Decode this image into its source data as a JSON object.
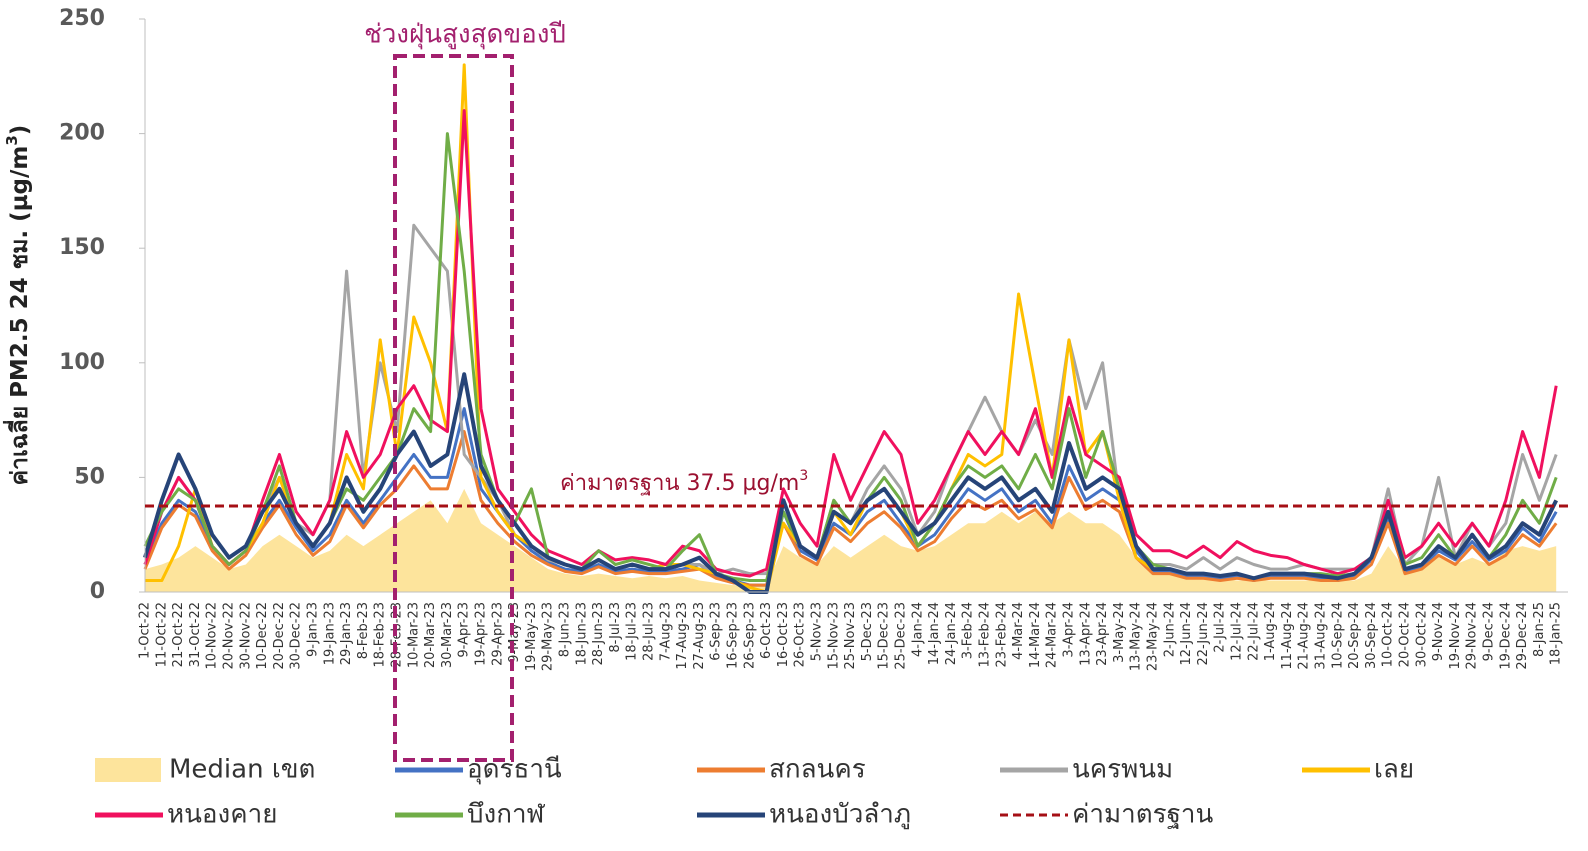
{
  "chart_data": {
    "type": "line",
    "y_label": [
      "ค่าเฉลี่ย PM2.5 24 ชม. (µg/m",
      "3",
      ")"
    ],
    "ylim": [
      0,
      250
    ],
    "yticks": [
      0,
      50,
      100,
      150,
      200,
      250
    ],
    "highlight_label": "ช่วงฝุ่นสูงสุดของปี",
    "categories": [
      "1-Oct-22",
      "11-Oct-22",
      "21-Oct-22",
      "31-Oct-22",
      "10-Nov-22",
      "20-Nov-22",
      "30-Nov-22",
      "10-Dec-22",
      "20-Dec-22",
      "30-Dec-22",
      "9-Jan-23",
      "19-Jan-23",
      "29-Jan-23",
      "8-Feb-23",
      "18-Feb-23",
      "28-Feb-23",
      "10-Mar-23",
      "20-Mar-23",
      "30-Mar-23",
      "9-Apr-23",
      "19-Apr-23",
      "29-Apr-23",
      "9-May-23",
      "19-May-23",
      "29-May-23",
      "8-Jun-23",
      "18-Jun-23",
      "28-Jun-23",
      "8-Jul-23",
      "18-Jul-23",
      "28-Jul-23",
      "7-Aug-23",
      "17-Aug-23",
      "27-Aug-23",
      "6-Sep-23",
      "16-Sep-23",
      "26-Sep-23",
      "6-Oct-23",
      "16-Oct-23",
      "26-Oct-23",
      "5-Nov-23",
      "15-Nov-23",
      "25-Nov-23",
      "5-Dec-23",
      "15-Dec-23",
      "25-Dec-23",
      "4-Jan-24",
      "14-Jan-24",
      "24-Jan-24",
      "3-Feb-24",
      "13-Feb-24",
      "23-Feb-24",
      "4-Mar-24",
      "14-Mar-24",
      "24-Mar-24",
      "3-Apr-24",
      "13-Apr-24",
      "23-Apr-24",
      "3-May-24",
      "13-May-24",
      "23-May-24",
      "2-Jun-24",
      "12-Jun-24",
      "22-Jun-24",
      "2-Jul-24",
      "12-Jul-24",
      "22-Jul-24",
      "1-Aug-24",
      "11-Aug-24",
      "21-Aug-24",
      "31-Aug-24",
      "10-Sep-24",
      "20-Sep-24",
      "30-Sep-24",
      "10-Oct-24",
      "20-Oct-24",
      "30-Oct-24",
      "9-Nov-24",
      "19-Nov-24",
      "29-Nov-24",
      "9-Dec-24",
      "19-Dec-24",
      "29-Dec-24",
      "8-Jan-25",
      "18-Jan-25"
    ],
    "series": [
      {
        "name": "Median เขต",
        "color": "#fde49c",
        "style": "area",
        "values": [
          10,
          12,
          15,
          20,
          15,
          10,
          12,
          20,
          25,
          20,
          15,
          18,
          25,
          20,
          25,
          30,
          35,
          40,
          30,
          45,
          30,
          25,
          20,
          15,
          10,
          8,
          7,
          8,
          7,
          6,
          7,
          6,
          7,
          5,
          4,
          3,
          3,
          3,
          20,
          15,
          12,
          20,
          15,
          20,
          25,
          20,
          18,
          20,
          25,
          30,
          30,
          35,
          30,
          35,
          30,
          35,
          30,
          30,
          25,
          15,
          10,
          8,
          7,
          6,
          6,
          5,
          5,
          5,
          5,
          5,
          5,
          5,
          5,
          8,
          20,
          10,
          12,
          15,
          12,
          15,
          12,
          18,
          20,
          18,
          20
        ]
      },
      {
        "name": "อุดรธานี",
        "color": "#4472c4",
        "values": [
          12,
          30,
          40,
          35,
          20,
          12,
          18,
          30,
          40,
          28,
          18,
          25,
          40,
          30,
          40,
          50,
          60,
          50,
          50,
          80,
          45,
          35,
          25,
          18,
          13,
          10,
          9,
          12,
          9,
          10,
          9,
          9,
          10,
          12,
          7,
          5,
          3,
          3,
          35,
          18,
          14,
          30,
          25,
          35,
          40,
          30,
          20,
          25,
          35,
          45,
          40,
          45,
          35,
          40,
          30,
          55,
          40,
          45,
          40,
          18,
          9,
          9,
          7,
          7,
          6,
          7,
          5,
          7,
          7,
          7,
          6,
          5,
          7,
          14,
          32,
          9,
          11,
          18,
          14,
          22,
          14,
          18,
          28,
          22,
          35
        ]
      },
      {
        "name": "สกลนคร",
        "color": "#ed7d31",
        "values": [
          10,
          28,
          38,
          33,
          18,
          10,
          16,
          28,
          38,
          25,
          16,
          22,
          38,
          28,
          38,
          45,
          55,
          45,
          45,
          70,
          40,
          30,
          22,
          16,
          12,
          9,
          8,
          11,
          8,
          9,
          8,
          8,
          9,
          10,
          6,
          4,
          3,
          3,
          30,
          16,
          12,
          28,
          22,
          30,
          35,
          28,
          18,
          22,
          32,
          40,
          36,
          40,
          32,
          36,
          28,
          50,
          36,
          40,
          35,
          15,
          8,
          8,
          6,
          6,
          5,
          6,
          5,
          6,
          6,
          6,
          5,
          5,
          6,
          12,
          30,
          8,
          10,
          16,
          12,
          20,
          12,
          16,
          25,
          20,
          30
        ]
      },
      {
        "name": "นครพนม",
        "color": "#a5a5a5",
        "values": [
          15,
          35,
          50,
          40,
          20,
          12,
          18,
          35,
          50,
          30,
          25,
          40,
          140,
          50,
          100,
          70,
          160,
          150,
          140,
          60,
          50,
          40,
          25,
          20,
          14,
          12,
          10,
          14,
          10,
          12,
          10,
          10,
          12,
          12,
          8,
          10,
          8,
          8,
          40,
          20,
          15,
          40,
          30,
          45,
          55,
          45,
          25,
          35,
          55,
          70,
          85,
          70,
          60,
          75,
          60,
          110,
          80,
          100,
          40,
          20,
          12,
          12,
          10,
          15,
          10,
          15,
          12,
          10,
          10,
          12,
          10,
          10,
          10,
          15,
          45,
          12,
          20,
          50,
          15,
          30,
          20,
          30,
          60,
          40,
          60
        ]
      },
      {
        "name": "เลย",
        "color": "#ffc000",
        "values": [
          5,
          5,
          20,
          45,
          20,
          12,
          18,
          30,
          50,
          30,
          20,
          30,
          60,
          45,
          110,
          60,
          120,
          100,
          70,
          230,
          50,
          35,
          25,
          20,
          15,
          12,
          10,
          14,
          10,
          12,
          10,
          12,
          12,
          10,
          8,
          5,
          2,
          0,
          30,
          20,
          15,
          35,
          25,
          40,
          45,
          35,
          20,
          30,
          45,
          60,
          55,
          60,
          130,
          90,
          50,
          110,
          60,
          70,
          40,
          15,
          10,
          10,
          8,
          8,
          7,
          8,
          6,
          8,
          8,
          8,
          7,
          6,
          8,
          15,
          35,
          10,
          12,
          20,
          15,
          25,
          15,
          20,
          30,
          25,
          40
        ]
      },
      {
        "name": "หนองคาย",
        "color": "#f0105e",
        "values": [
          12,
          35,
          50,
          40,
          20,
          12,
          18,
          40,
          60,
          35,
          25,
          40,
          70,
          50,
          60,
          80,
          90,
          75,
          70,
          210,
          80,
          45,
          35,
          25,
          18,
          15,
          12,
          18,
          14,
          15,
          14,
          12,
          20,
          18,
          10,
          8,
          7,
          10,
          45,
          30,
          20,
          60,
          40,
          55,
          70,
          60,
          30,
          40,
          55,
          70,
          60,
          70,
          60,
          80,
          50,
          85,
          60,
          55,
          50,
          25,
          18,
          18,
          15,
          20,
          15,
          22,
          18,
          16,
          15,
          12,
          10,
          8,
          10,
          15,
          40,
          15,
          20,
          30,
          20,
          30,
          20,
          40,
          70,
          50,
          90
        ]
      },
      {
        "name": "บึงกาฬ",
        "color": "#70ad47",
        "values": [
          20,
          35,
          45,
          40,
          20,
          12,
          18,
          35,
          55,
          30,
          20,
          30,
          45,
          40,
          50,
          60,
          80,
          70,
          200,
          140,
          60,
          40,
          30,
          45,
          15,
          12,
          10,
          18,
          12,
          14,
          12,
          10,
          18,
          25,
          8,
          6,
          5,
          5,
          35,
          20,
          15,
          40,
          30,
          40,
          50,
          40,
          20,
          30,
          45,
          55,
          50,
          55,
          45,
          60,
          45,
          80,
          50,
          70,
          45,
          20,
          12,
          10,
          8,
          8,
          7,
          8,
          6,
          8,
          8,
          8,
          8,
          7,
          8,
          15,
          35,
          12,
          15,
          25,
          15,
          25,
          15,
          25,
          40,
          30,
          50
        ]
      },
      {
        "name": "หนองบัวลำภู",
        "color": "#264478",
        "values": [
          15,
          40,
          60,
          45,
          25,
          15,
          20,
          35,
          45,
          30,
          20,
          30,
          50,
          35,
          45,
          60,
          70,
          55,
          60,
          95,
          55,
          40,
          30,
          20,
          15,
          12,
          10,
          14,
          10,
          12,
          10,
          10,
          12,
          15,
          8,
          5,
          0,
          0,
          40,
          20,
          15,
          35,
          30,
          40,
          45,
          35,
          25,
          30,
          40,
          50,
          45,
          50,
          40,
          45,
          35,
          65,
          45,
          50,
          45,
          20,
          10,
          10,
          8,
          8,
          7,
          8,
          6,
          8,
          8,
          8,
          7,
          6,
          8,
          15,
          35,
          10,
          12,
          20,
          15,
          25,
          15,
          20,
          30,
          25,
          40
        ]
      }
    ],
    "reference": {
      "name": "ค่ามาตรฐาน",
      "value": 37.5,
      "color": "#a50f15",
      "label": [
        "ค่ามาตรฐาน 37.5 µg/m",
        "3"
      ]
    }
  }
}
